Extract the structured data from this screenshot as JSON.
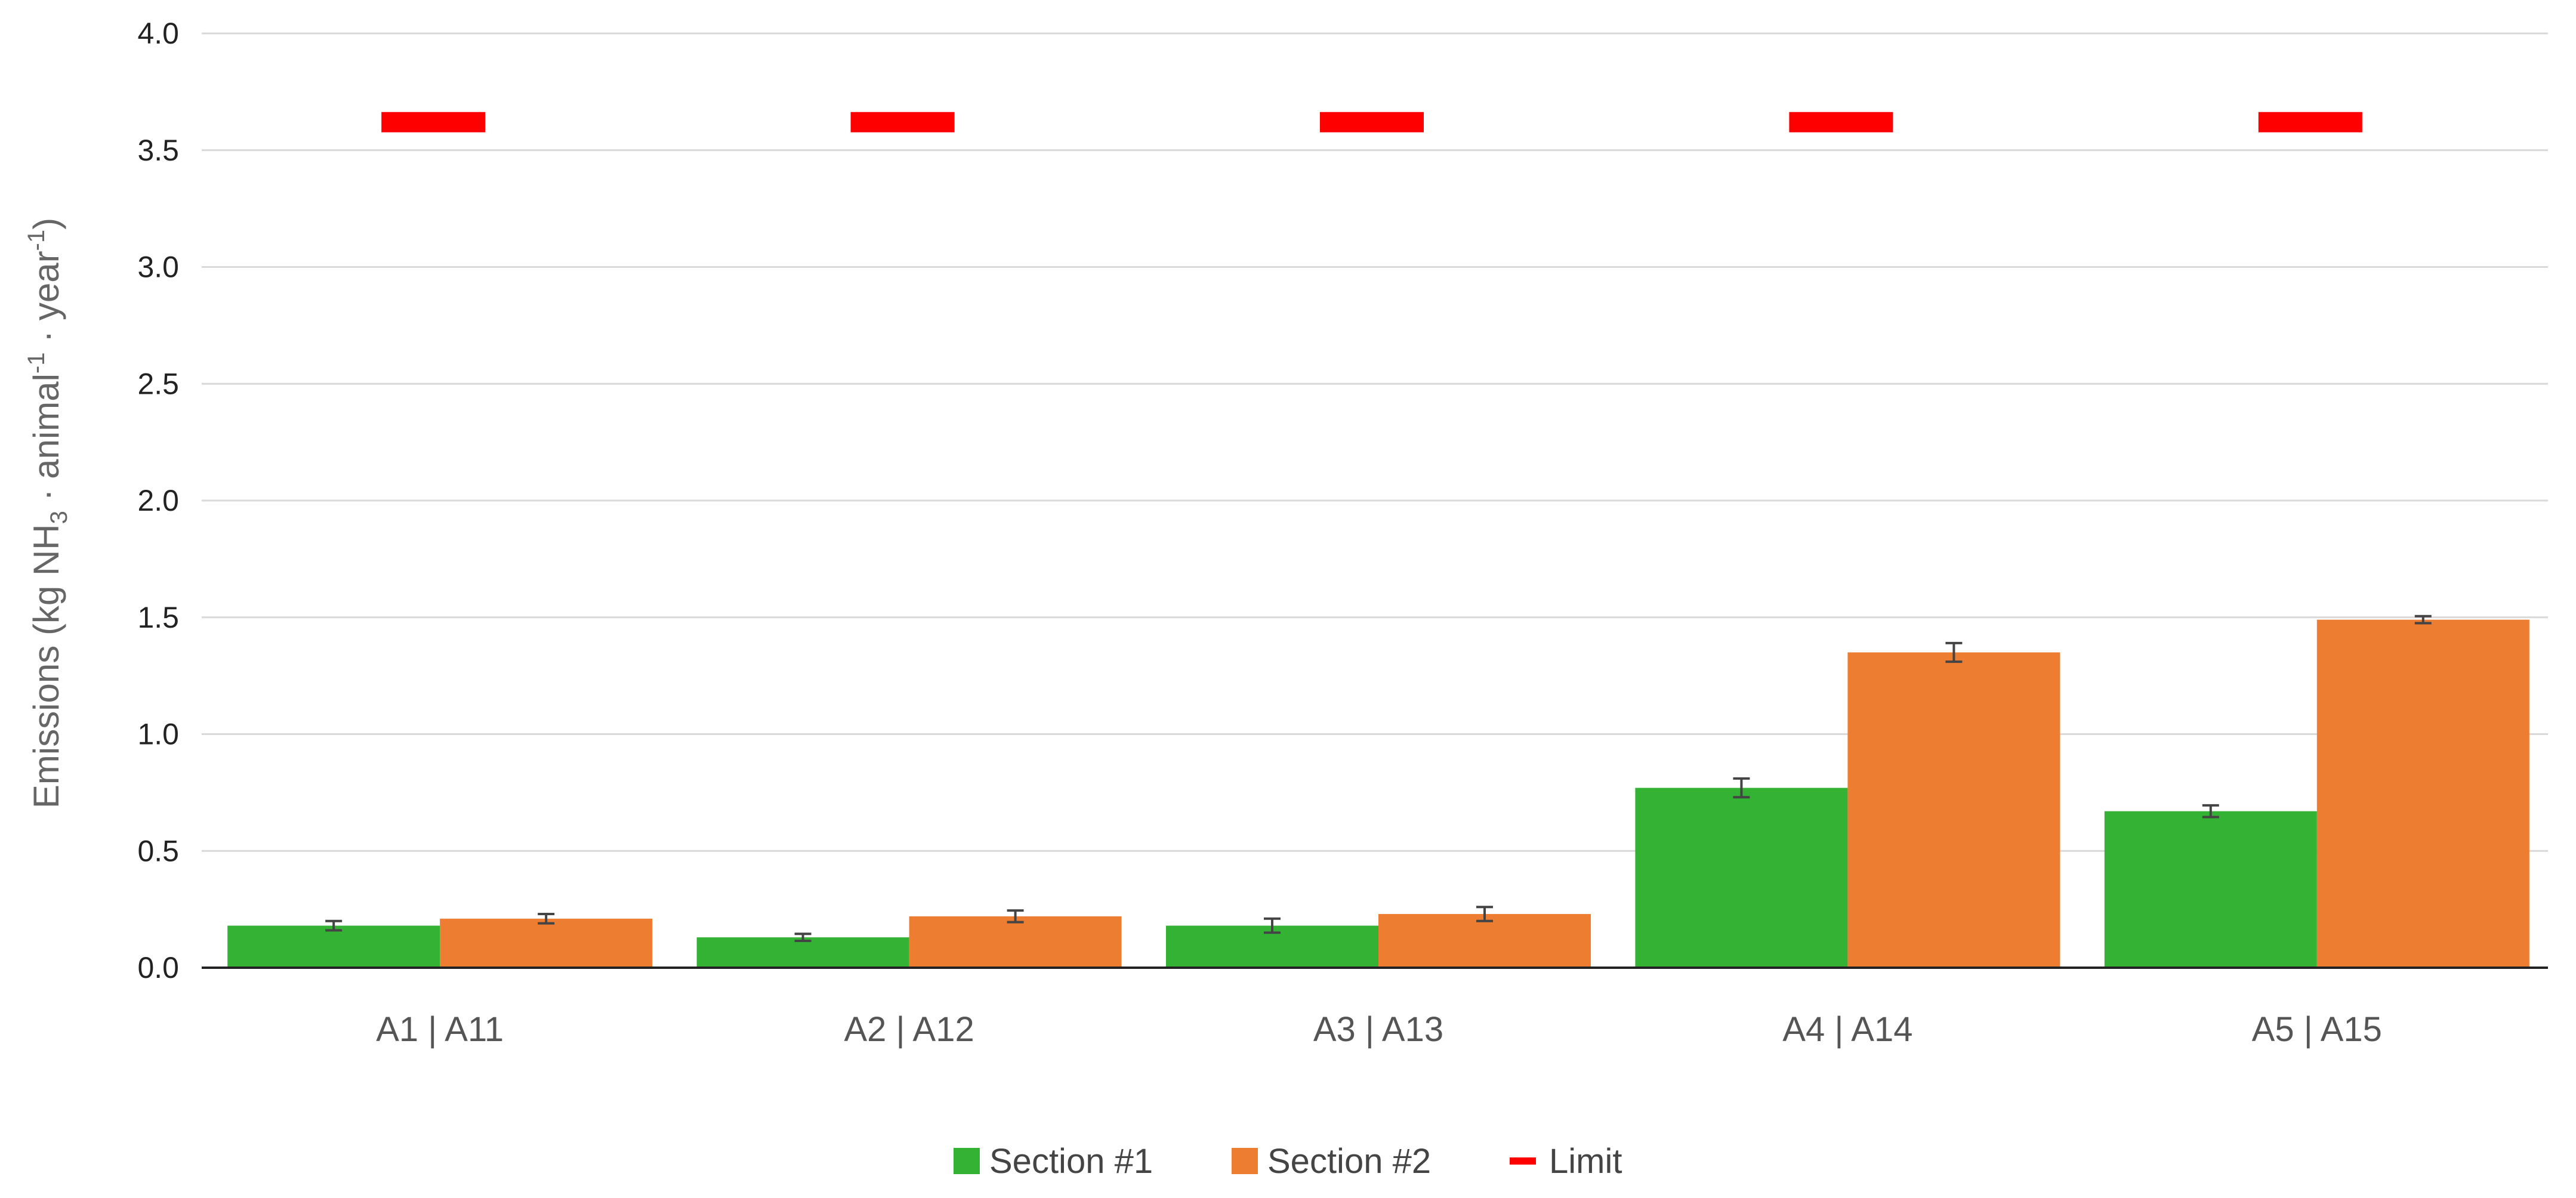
{
  "chart_data": {
    "type": "bar",
    "title": "",
    "xlabel": "",
    "ylabel": {
      "prefix": "Emissions (kg NH",
      "sub": "3",
      "middle": " · animal",
      "sup1": "-1",
      "suffix_mid": " · year",
      "sup2": "-1",
      "suffix": ")"
    },
    "ylim": [
      0,
      4.0
    ],
    "yticks": [
      "0.0",
      "0.5",
      "1.0",
      "1.5",
      "2.0",
      "2.5",
      "3.0",
      "3.5",
      "4.0"
    ],
    "grid": true,
    "legend_position": "bottom",
    "categories": [
      "A1 | A11",
      "A2 | A12",
      "A3 | A13",
      "A4 | A14",
      "A5 | A15"
    ],
    "series": [
      {
        "name": "Section #1",
        "color": "#33b233",
        "values": [
          0.18,
          0.13,
          0.18,
          0.77,
          0.67
        ],
        "errors": [
          0.02,
          0.015,
          0.03,
          0.04,
          0.025
        ]
      },
      {
        "name": "Section #2",
        "color": "#ed7d31",
        "values": [
          0.21,
          0.22,
          0.23,
          1.35,
          1.49
        ],
        "errors": [
          0.02,
          0.025,
          0.03,
          0.04,
          0.015
        ]
      }
    ],
    "limit": {
      "name": "Limit",
      "color": "#ff0000",
      "value": 3.62
    }
  }
}
